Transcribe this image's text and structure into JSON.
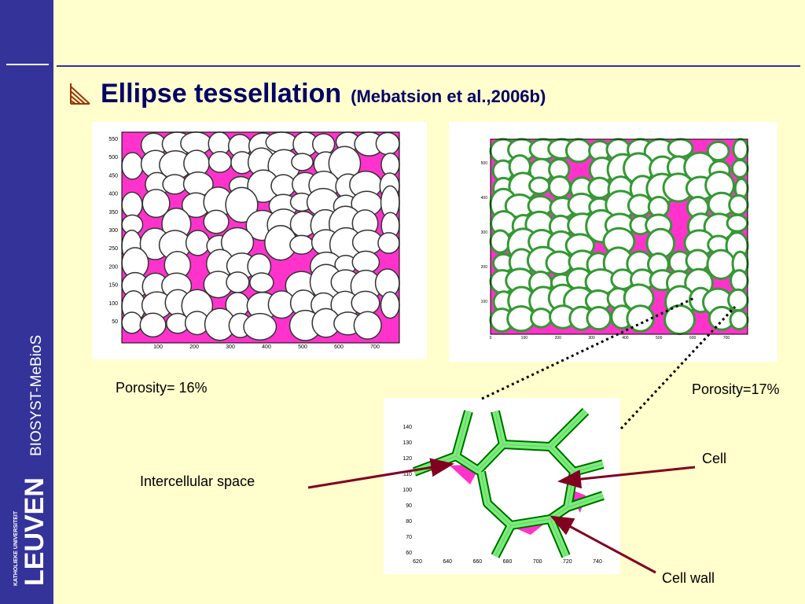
{
  "sidebar": {
    "label": "BIOSYST-MeBioS",
    "university": "KATHOLIEKE UNIVERSITEIT",
    "logo": "LEUVEN"
  },
  "header": {
    "title": "Ellipse tessellation",
    "citation": "(Mebatsion et al.,2006b)"
  },
  "figures": [
    {
      "caption": "Porosity= 16%",
      "xticks": [
        100,
        200,
        300,
        400,
        500,
        600,
        700
      ],
      "yticks": [
        550,
        500,
        450,
        400,
        350,
        300,
        250,
        200,
        150,
        100,
        50
      ]
    },
    {
      "caption": "Porosity=17%",
      "xticks": [
        0,
        100,
        200,
        300,
        400,
        500,
        600,
        700
      ],
      "yticks": [
        500,
        400,
        300,
        200,
        100
      ]
    },
    {
      "xticks": [
        620,
        640,
        660,
        680,
        700,
        720,
        740
      ],
      "yticks": [
        140,
        130,
        120,
        110,
        100,
        90,
        80,
        70,
        60
      ]
    }
  ],
  "annotations": {
    "intercellular": "Intercellular space",
    "cell": "Cell",
    "cell_wall": "Cell wall"
  }
}
